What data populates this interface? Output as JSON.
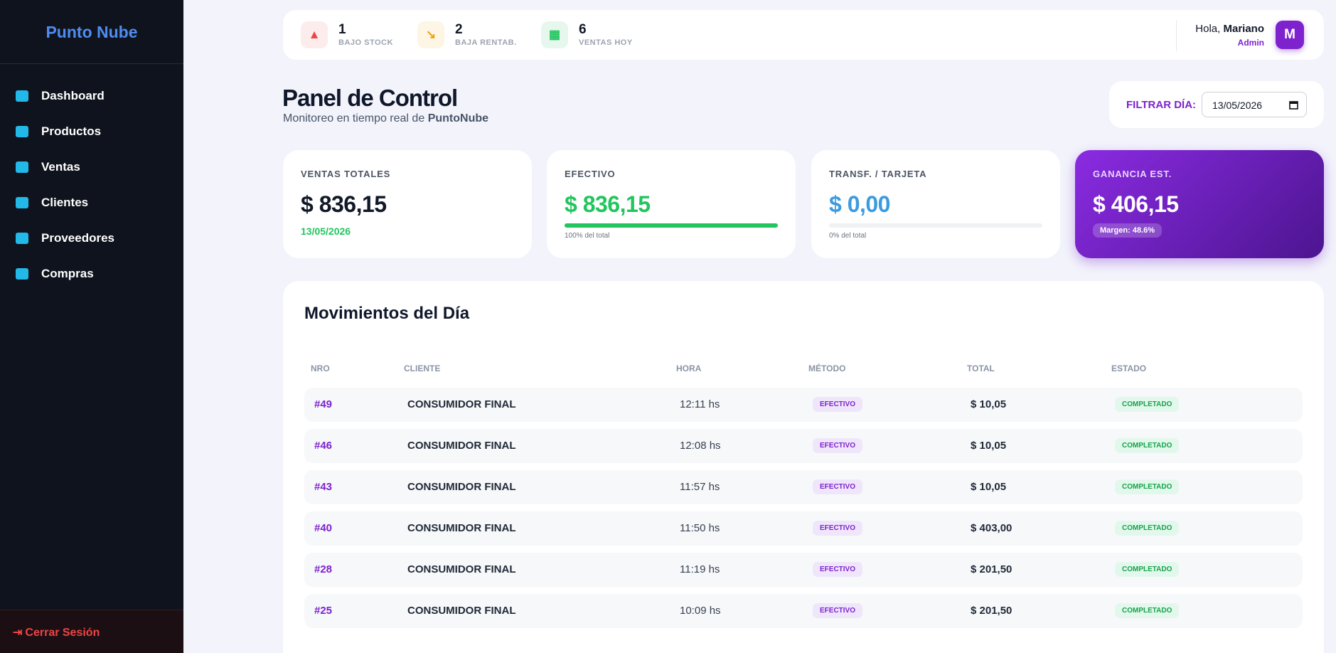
{
  "sidebar": {
    "brand": "Punto Nube",
    "nav": [
      "Dashboard",
      "Productos",
      "Ventas",
      "Clientes",
      "Proveedores",
      "Compras"
    ],
    "logout": "Cerrar Sesión"
  },
  "topbar": {
    "alerts": [
      {
        "count": "1",
        "label": "BAJO STOCK"
      },
      {
        "count": "2",
        "label": "BAJA RENTAB."
      },
      {
        "count": "6",
        "label": "VENTAS HOY"
      }
    ],
    "greeting": "Hola,",
    "user": "Mariano",
    "role": "Admin",
    "avatar": "M"
  },
  "header": {
    "title": "Panel de Control",
    "subtitle": "Monitoreo en tiempo real de",
    "brand": "PuntoNube"
  },
  "filter": {
    "label": "FILTRAR DÍA:",
    "date": "13/05/2026"
  },
  "kpis": [
    {
      "label": "VENTAS TOTALES",
      "value": "$ 836,15",
      "note": "13/05/2026"
    },
    {
      "label": "EFECTIVO",
      "value": "$ 836,15",
      "note": "100% del total"
    },
    {
      "label": "TRANSF. / TARJETA",
      "value": "$ 0,00",
      "note": "0% del total"
    },
    {
      "label": "GANANCIA EST.",
      "value": "$ 406,15",
      "note": "Margen: 48.6%"
    }
  ],
  "table": {
    "title": "Movimientos del Día",
    "columns": [
      "NRO",
      "CLIENTE",
      "HORA",
      "MÉTODO",
      "TOTAL",
      "ESTADO"
    ],
    "rows": [
      [
        "#49",
        "CONSUMIDOR FINAL",
        "12:11 hs",
        "EFECTIVO",
        "$ 10,05",
        "COMPLETADO"
      ],
      [
        "#46",
        "CONSUMIDOR FINAL",
        "12:08 hs",
        "EFECTIVO",
        "$ 10,05",
        "COMPLETADO"
      ],
      [
        "#43",
        "CONSUMIDOR FINAL",
        "11:57 hs",
        "EFECTIVO",
        "$ 10,05",
        "COMPLETADO"
      ],
      [
        "#40",
        "CONSUMIDOR FINAL",
        "11:50 hs",
        "EFECTIVO",
        "$ 403,00",
        "COMPLETADO"
      ],
      [
        "#28",
        "CONSUMIDOR FINAL",
        "11:19 hs",
        "EFECTIVO",
        "$ 201,50",
        "COMPLETADO"
      ],
      [
        "#25",
        "CONSUMIDOR FINAL",
        "10:09 hs",
        "EFECTIVO",
        "$ 201,50",
        "COMPLETADO"
      ]
    ]
  }
}
